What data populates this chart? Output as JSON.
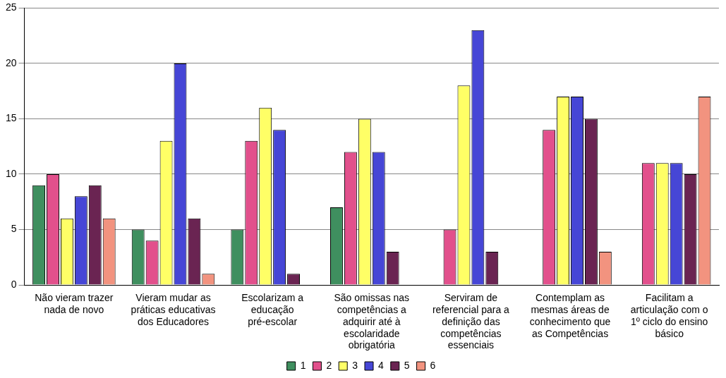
{
  "chart_data": {
    "type": "bar",
    "categories": [
      "Não vieram trazer nada de novo",
      "Vieram mudar as práticas educativas dos Educadores",
      "Escolarizam a educação pré-escolar",
      "São omissas nas competências a adquirir até à escolaridade obrigatória",
      "Serviram de referencial para a definição das competências essenciais",
      "Contemplam as mesmas áreas de conhecimento que as Competências",
      "Facilitam a articulação com o 1º ciclo do ensino básico"
    ],
    "series": [
      {
        "name": "1",
        "color": "#3f8f5f",
        "values": [
          9,
          5,
          5,
          7,
          0,
          0,
          0
        ]
      },
      {
        "name": "2",
        "color": "#e2508c",
        "values": [
          10,
          4,
          13,
          12,
          5,
          14,
          11
        ]
      },
      {
        "name": "3",
        "color": "#ffff66",
        "values": [
          6,
          13,
          16,
          15,
          18,
          17,
          11
        ]
      },
      {
        "name": "4",
        "color": "#4646d6",
        "values": [
          8,
          20,
          14,
          12,
          23,
          17,
          11
        ]
      },
      {
        "name": "5",
        "color": "#6a2452",
        "values": [
          9,
          6,
          1,
          3,
          3,
          15,
          10
        ]
      },
      {
        "name": "6",
        "color": "#f2937f",
        "values": [
          6,
          1,
          0,
          0,
          0,
          3,
          17
        ]
      }
    ],
    "ylim": [
      0,
      25
    ],
    "yticks": [
      0,
      5,
      10,
      15,
      20,
      25
    ],
    "grid": "y",
    "legend": "bottom"
  }
}
